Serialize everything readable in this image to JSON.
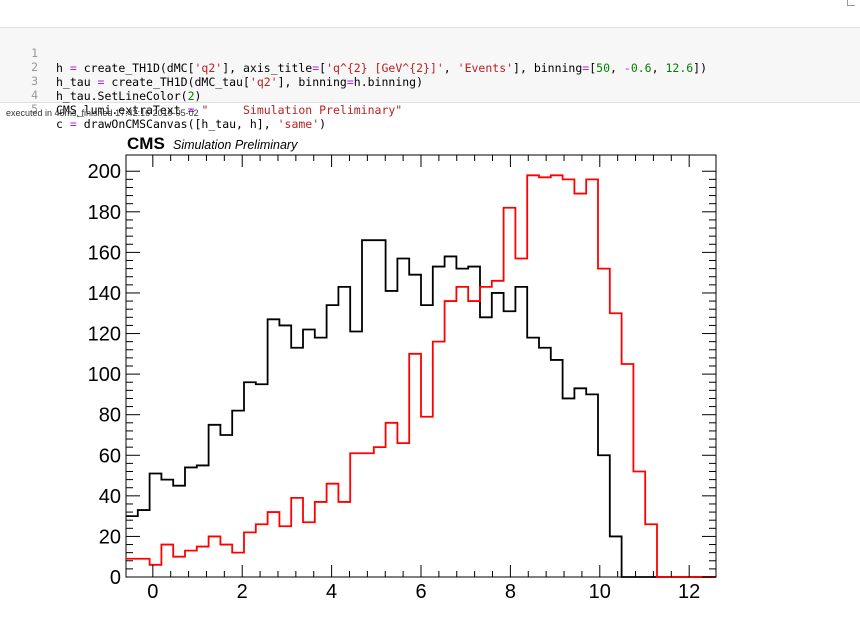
{
  "notebook": {
    "code_lines": [
      {
        "n": "1",
        "parts": [
          {
            "t": "h ",
            "c": ""
          },
          {
            "t": "=",
            "c": "op"
          },
          {
            "t": " create_TH1D(dMC[",
            "c": ""
          },
          {
            "t": "'q2'",
            "c": "s"
          },
          {
            "t": "], axis_title",
            "c": ""
          },
          {
            "t": "=",
            "c": "op"
          },
          {
            "t": "[",
            "c": ""
          },
          {
            "t": "'q^{2} [GeV^{2}]'",
            "c": "s"
          },
          {
            "t": ", ",
            "c": ""
          },
          {
            "t": "'Events'",
            "c": "s"
          },
          {
            "t": "], binning",
            "c": ""
          },
          {
            "t": "=",
            "c": "op"
          },
          {
            "t": "[",
            "c": ""
          },
          {
            "t": "50",
            "c": "n"
          },
          {
            "t": ", ",
            "c": ""
          },
          {
            "t": "-",
            "c": "op"
          },
          {
            "t": "0.6",
            "c": "n"
          },
          {
            "t": ", ",
            "c": ""
          },
          {
            "t": "12.6",
            "c": "n"
          },
          {
            "t": "])",
            "c": ""
          }
        ]
      },
      {
        "n": "2",
        "parts": [
          {
            "t": "h_tau ",
            "c": ""
          },
          {
            "t": "=",
            "c": "op"
          },
          {
            "t": " create_TH1D(dMC_tau[",
            "c": ""
          },
          {
            "t": "'q2'",
            "c": "s"
          },
          {
            "t": "], binning",
            "c": ""
          },
          {
            "t": "=",
            "c": "op"
          },
          {
            "t": "h.binning)",
            "c": ""
          }
        ]
      },
      {
        "n": "3",
        "parts": [
          {
            "t": "h_tau.SetLineColor(",
            "c": ""
          },
          {
            "t": "2",
            "c": "n"
          },
          {
            "t": ")",
            "c": ""
          }
        ]
      },
      {
        "n": "4",
        "parts": [
          {
            "t": "CMS_lumi.extraText ",
            "c": ""
          },
          {
            "t": "=",
            "c": "op"
          },
          {
            "t": " ",
            "c": ""
          },
          {
            "t": "\"     Simulation Preliminary\"",
            "c": "s"
          }
        ]
      },
      {
        "n": "5",
        "parts": [
          {
            "t": "c ",
            "c": ""
          },
          {
            "t": "=",
            "c": "op"
          },
          {
            "t": " drawOnCMSCanvas([h_tau, h], ",
            "c": ""
          },
          {
            "t": "'same'",
            "c": "s"
          },
          {
            "t": ")",
            "c": ""
          }
        ]
      }
    ],
    "exec_status": "executed in 45ms, finished 17:42:16 2019-05-02"
  },
  "chart_data": {
    "type": "histogram",
    "header": {
      "cms_label": "CMS",
      "extra_text": "Simulation Preliminary"
    },
    "xlim": [
      -0.6,
      12.6
    ],
    "ylim": [
      0,
      208
    ],
    "bins": 50,
    "x_ticks": [
      "0",
      "2",
      "4",
      "6",
      "8",
      "10",
      "12"
    ],
    "y_ticks": [
      "0",
      "20",
      "40",
      "60",
      "80",
      "100",
      "120",
      "140",
      "160",
      "180",
      "200"
    ],
    "series": [
      {
        "color": "#000000",
        "values": [
          30,
          33,
          51,
          48,
          45,
          54,
          55,
          75,
          70,
          82,
          96,
          95,
          127,
          124,
          113,
          122,
          118,
          134,
          143,
          121,
          166,
          166,
          141,
          157,
          149,
          134,
          153,
          158,
          152,
          153,
          128,
          140,
          131,
          143,
          118,
          113,
          107,
          88,
          93,
          90,
          60,
          20,
          0,
          0,
          0,
          0,
          0,
          0,
          0,
          0
        ]
      },
      {
        "color": "#ff0000",
        "values": [
          9,
          9,
          6,
          16,
          10,
          13,
          15,
          20,
          16,
          12,
          22,
          26,
          32,
          25,
          39,
          27,
          37,
          46,
          37,
          61,
          61,
          64,
          76,
          66,
          110,
          79,
          116,
          136,
          143,
          136,
          143,
          146,
          182,
          157,
          198,
          197,
          198,
          196,
          189,
          196,
          152,
          130,
          105,
          52,
          26,
          0,
          0,
          0,
          0,
          0
        ]
      }
    ]
  }
}
